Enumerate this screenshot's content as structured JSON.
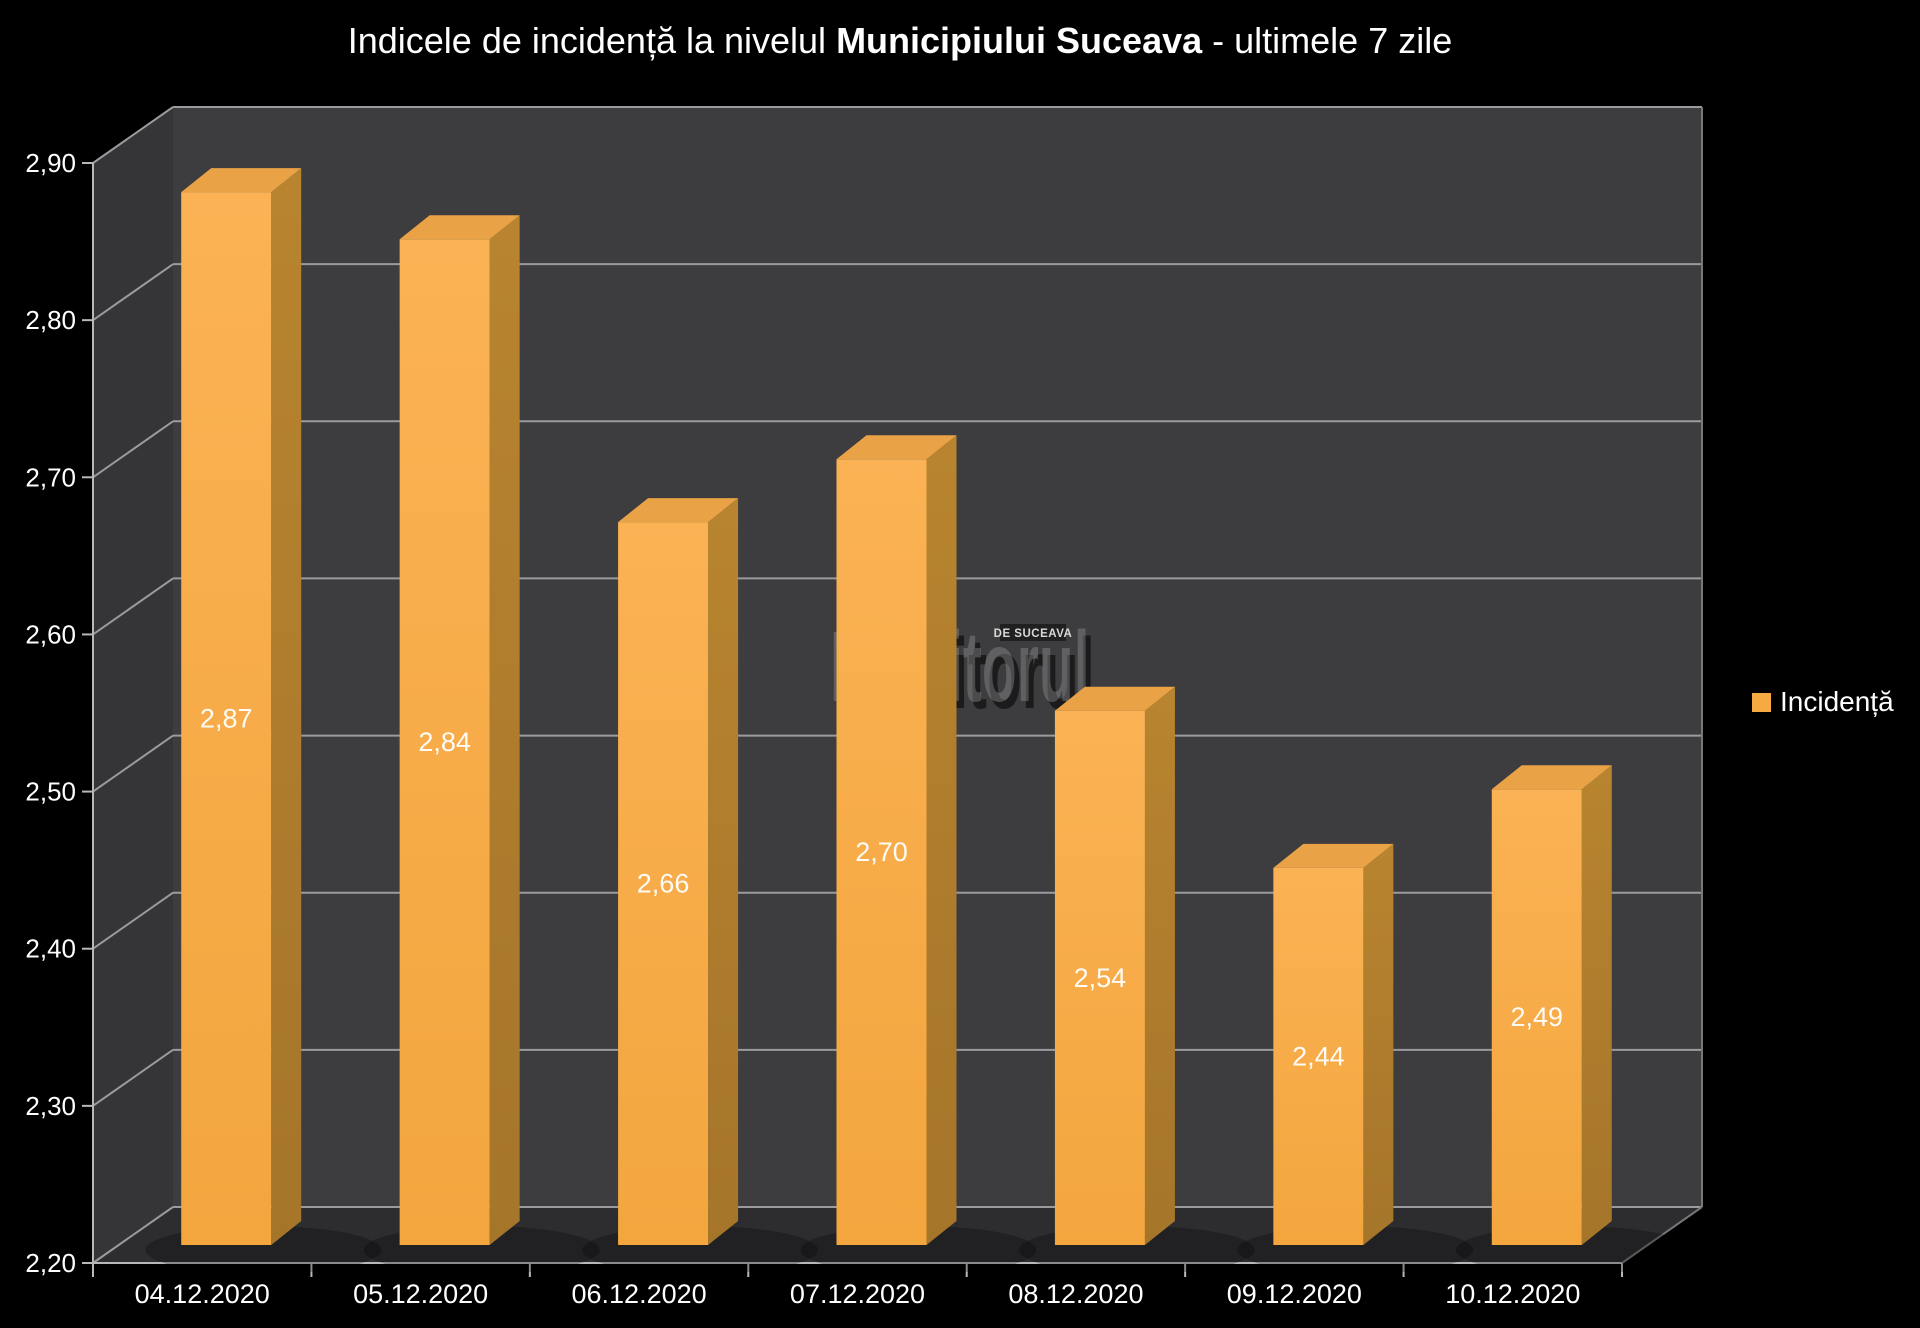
{
  "page": {
    "background": "#000000"
  },
  "title": {
    "prefix": "Indicele de incidență la nivelul ",
    "bold": "Municipiului Suceava",
    "suffix": " - ultimele 7 zile"
  },
  "legend": {
    "label": "Incidență",
    "swatch_color": "#F6AA42"
  },
  "watermark": {
    "text": "Monitorul",
    "badge": "DE SUCEAVA"
  },
  "colors": {
    "background": "#000000",
    "wall_back": "#3D3D40",
    "wall_side": "#353538",
    "floor": "#2D2D2F",
    "gridline": "#9B9B9E",
    "axis_line": "#B8B8BB",
    "edge_line": "#77777A",
    "tick_text": "#FFFFFF",
    "bar_front_light": "#FBB254",
    "bar_front_dark": "#F3A63E",
    "bar_top": "#E9A246",
    "bar_side_light": "#B8842F",
    "bar_side_dark": "#A5752A",
    "value_label": "#FFFFFF",
    "watermark_gray": "#999999"
  },
  "chart_data": {
    "type": "bar",
    "style": "3d-column",
    "title": "Indicele de incidență la nivelul Municipiului Suceava - ultimele 7 zile",
    "categories": [
      "04.12.2020",
      "05.12.2020",
      "06.12.2020",
      "07.12.2020",
      "08.12.2020",
      "09.12.2020",
      "10.12.2020"
    ],
    "series": [
      {
        "name": "Incidență",
        "values": [
          2.87,
          2.84,
          2.66,
          2.7,
          2.54,
          2.44,
          2.49
        ],
        "value_labels": [
          "2,87",
          "2,84",
          "2,66",
          "2,70",
          "2,54",
          "2,44",
          "2,49"
        ]
      }
    ],
    "xlabel": "",
    "ylabel": "",
    "ylim": [
      2.2,
      2.9
    ],
    "ytick_step": 0.1,
    "ytick_labels": [
      "2,20",
      "2,30",
      "2,40",
      "2,50",
      "2,60",
      "2,70",
      "2,80",
      "2,90"
    ],
    "grid": true,
    "legend_position": "right",
    "decimal_separator": ","
  }
}
